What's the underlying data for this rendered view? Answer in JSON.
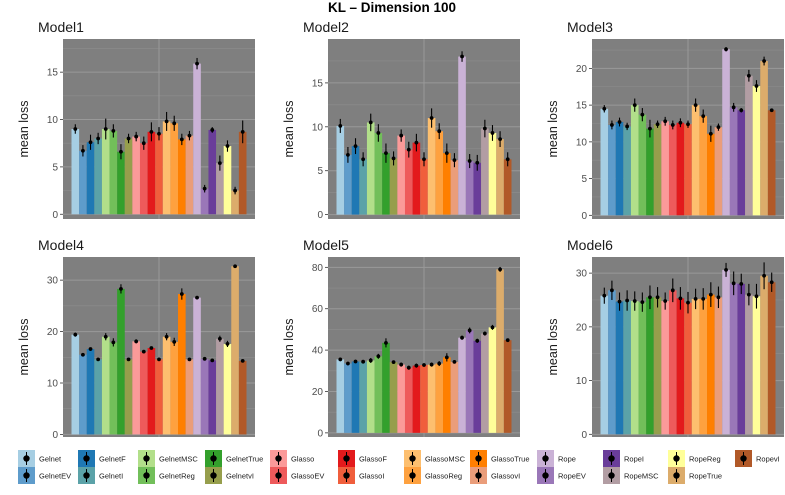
{
  "figure_title": "KL – Dimension 100",
  "methods": [
    "Gelnet",
    "GelnetEV",
    "GelnetF",
    "GelnetI",
    "GelnetMSC",
    "GelnetReg",
    "GelnetTrue",
    "GelnetvI",
    "Glasso",
    "GlassoEV",
    "GlassoF",
    "GlassoI",
    "GlassoMSC",
    "GlassoReg",
    "GlassoTrue",
    "GlassovI",
    "Rope",
    "RopeEV",
    "RopeI",
    "RopeMSC",
    "RopeReg",
    "RopeTrue",
    "RopevI"
  ],
  "colors": [
    "#a6cee3",
    "#5e9ccb",
    "#1f78b4",
    "#5ba2a8",
    "#b2df8a",
    "#72bf5a",
    "#33a02c",
    "#969e4c",
    "#fb9a99",
    "#ee5a5b",
    "#e31a1c",
    "#f05e3c",
    "#fdbf6f",
    "#fea13f",
    "#ff7f00",
    "#ea9d7a",
    "#cab2d6",
    "#9a77b8",
    "#6a3d9a",
    "#b29da3",
    "#ffff99",
    "#dcac6b",
    "#b15928"
  ],
  "chart_data": [
    {
      "type": "bar",
      "title": "Model1",
      "ylabel": "mean loss",
      "ylim": [
        -0.5,
        18.5
      ],
      "yticks": [
        0,
        5,
        10,
        15
      ],
      "categories": [
        "Gelnet",
        "GelnetEV",
        "GelnetF",
        "GelnetI",
        "GelnetMSC",
        "GelnetReg",
        "GelnetTrue",
        "GelnetvI",
        "Glasso",
        "GlassoEV",
        "GlassoF",
        "GlassoI",
        "GlassoMSC",
        "GlassoReg",
        "GlassoTrue",
        "GlassovI",
        "Rope",
        "RopeEV",
        "RopeI",
        "RopeMSC",
        "RopeReg",
        "RopeTrue",
        "RopevI"
      ],
      "values": [
        9.0,
        6.7,
        7.6,
        8.0,
        9.0,
        8.8,
        6.6,
        8.0,
        8.2,
        7.5,
        8.7,
        8.5,
        9.8,
        9.6,
        7.9,
        8.3,
        15.9,
        2.7,
        8.9,
        5.4,
        7.2,
        2.5,
        8.7
      ],
      "errors": [
        0.5,
        0.6,
        0.8,
        0.6,
        1.1,
        0.7,
        0.8,
        0.5,
        0.5,
        0.7,
        1.0,
        0.7,
        1.0,
        0.8,
        0.6,
        0.5,
        0.6,
        0.4,
        0.3,
        0.8,
        0.6,
        0.4,
        1.2
      ]
    },
    {
      "type": "bar",
      "title": "Model2",
      "ylabel": "mean loss",
      "ylim": [
        -0.5,
        20
      ],
      "yticks": [
        0,
        5,
        10,
        15
      ],
      "categories": [
        "Gelnet",
        "GelnetEV",
        "GelnetF",
        "GelnetI",
        "GelnetMSC",
        "GelnetReg",
        "GelnetTrue",
        "GelnetvI",
        "Glasso",
        "GlassoEV",
        "GlassoF",
        "GlassoI",
        "GlassoMSC",
        "GlassoReg",
        "GlassoTrue",
        "GlassovI",
        "Rope",
        "RopeEV",
        "RopeI",
        "RopeMSC",
        "RopeReg",
        "RopeTrue",
        "RopevI"
      ],
      "values": [
        10.1,
        6.8,
        7.8,
        6.3,
        10.5,
        9.3,
        7.0,
        6.4,
        9.0,
        7.4,
        8.2,
        6.3,
        11.0,
        9.5,
        7.0,
        6.2,
        18.0,
        6.1,
        5.9,
        9.8,
        9.3,
        8.6,
        6.3
      ],
      "errors": [
        0.8,
        0.9,
        0.9,
        0.8,
        1.0,
        1.0,
        1.1,
        0.8,
        0.7,
        0.9,
        1.0,
        0.8,
        1.1,
        0.9,
        1.1,
        0.8,
        0.6,
        0.8,
        0.9,
        1.0,
        0.9,
        0.9,
        0.8
      ]
    },
    {
      "type": "bar",
      "title": "Model3",
      "ylabel": "mean loss",
      "ylim": [
        -0.5,
        24
      ],
      "yticks": [
        0,
        5,
        10,
        15,
        20
      ],
      "categories": [
        "Gelnet",
        "GelnetEV",
        "GelnetF",
        "GelnetI",
        "GelnetMSC",
        "GelnetReg",
        "GelnetTrue",
        "GelnetvI",
        "Glasso",
        "GlassoEV",
        "GlassoF",
        "GlassoI",
        "GlassoMSC",
        "GlassoReg",
        "GlassoTrue",
        "GlassovI",
        "Rope",
        "RopeEV",
        "RopeI",
        "RopeMSC",
        "RopeReg",
        "RopeTrue",
        "RopevI"
      ],
      "values": [
        14.5,
        12.3,
        12.7,
        12.1,
        15.0,
        13.7,
        11.8,
        12.4,
        12.8,
        12.3,
        12.6,
        12.4,
        15.0,
        13.5,
        11.1,
        12.0,
        22.6,
        14.7,
        14.3,
        19.0,
        17.6,
        21.0,
        14.3
      ],
      "errors": [
        0.5,
        0.6,
        0.6,
        0.5,
        0.9,
        0.9,
        1.2,
        0.5,
        0.6,
        0.6,
        0.6,
        0.5,
        0.9,
        0.9,
        1.1,
        0.5,
        0.3,
        0.6,
        0.3,
        0.8,
        0.8,
        0.6,
        0.2
      ]
    },
    {
      "type": "bar",
      "title": "Model4",
      "ylabel": "mean loss",
      "ylim": [
        -0.5,
        34.5
      ],
      "yticks": [
        0,
        10,
        20,
        30
      ],
      "categories": [
        "Gelnet",
        "GelnetEV",
        "GelnetF",
        "GelnetI",
        "GelnetMSC",
        "GelnetReg",
        "GelnetTrue",
        "GelnetvI",
        "Glasso",
        "GlassoEV",
        "GlassoF",
        "GlassoI",
        "GlassoMSC",
        "GlassoReg",
        "GlassoTrue",
        "GlassovI",
        "Rope",
        "RopeEV",
        "RopeI",
        "RopeMSC",
        "RopeReg",
        "RopeTrue",
        "RopevI"
      ],
      "values": [
        19.4,
        15.5,
        16.6,
        14.6,
        19.0,
        17.9,
        28.3,
        14.6,
        18.1,
        16.1,
        16.8,
        14.6,
        19.0,
        18.0,
        27.3,
        14.6,
        26.6,
        14.7,
        14.4,
        18.6,
        17.6,
        32.7,
        14.3
      ],
      "errors": [
        0.4,
        0.3,
        0.3,
        0.2,
        0.7,
        0.8,
        0.9,
        0.2,
        0.4,
        0.3,
        0.3,
        0.2,
        0.7,
        0.8,
        1.1,
        0.2,
        0.3,
        0.2,
        0.2,
        0.6,
        0.6,
        0.3,
        0.2
      ]
    },
    {
      "type": "bar",
      "title": "Model5",
      "ylabel": "mean loss",
      "ylim": [
        -2,
        85
      ],
      "yticks": [
        0,
        20,
        40,
        60,
        80
      ],
      "categories": [
        "Gelnet",
        "GelnetEV",
        "GelnetF",
        "GelnetI",
        "GelnetMSC",
        "GelnetReg",
        "GelnetTrue",
        "GelnetvI",
        "Glasso",
        "GlassoEV",
        "GlassoF",
        "GlassoI",
        "GlassoMSC",
        "GlassoReg",
        "GlassoTrue",
        "GlassovI",
        "Rope",
        "RopeEV",
        "RopeI",
        "RopeMSC",
        "RopeReg",
        "RopeTrue",
        "RopevI"
      ],
      "values": [
        35.5,
        33.5,
        34.5,
        34.4,
        35.0,
        37.0,
        43.5,
        34.2,
        33.0,
        31.5,
        32.5,
        32.8,
        33.0,
        33.5,
        36.5,
        34.3,
        46.0,
        49.5,
        44.5,
        48.0,
        51.0,
        79.0,
        44.8
      ],
      "errors": [
        0.8,
        0.8,
        0.8,
        0.6,
        1.2,
        1.2,
        2.2,
        0.8,
        1.0,
        1.0,
        1.0,
        0.8,
        1.0,
        1.2,
        2.0,
        0.8,
        1.0,
        1.4,
        1.0,
        1.0,
        1.2,
        1.2,
        0.6
      ]
    },
    {
      "type": "bar",
      "title": "Model6",
      "ylabel": "mean loss",
      "ylim": [
        -0.5,
        33
      ],
      "yticks": [
        0,
        10,
        20,
        30
      ],
      "categories": [
        "Gelnet",
        "GelnetEV",
        "GelnetF",
        "GelnetI",
        "GelnetMSC",
        "GelnetReg",
        "GelnetTrue",
        "GelnetvI",
        "Glasso",
        "GlassoEV",
        "GlassoF",
        "GlassoI",
        "GlassoMSC",
        "GlassoReg",
        "GlassoTrue",
        "GlassovI",
        "Rope",
        "RopeEV",
        "RopeI",
        "RopeMSC",
        "RopeReg",
        "RopeTrue",
        "RopevI"
      ],
      "values": [
        25.8,
        26.8,
        24.7,
        24.9,
        24.8,
        24.6,
        25.5,
        25.5,
        24.8,
        26.8,
        25.3,
        24.5,
        25.2,
        25.2,
        26.0,
        25.5,
        30.6,
        28.1,
        28.0,
        26.0,
        25.7,
        29.5,
        28.3
      ],
      "errors": [
        1.5,
        1.8,
        1.7,
        1.9,
        1.8,
        1.8,
        2.2,
        1.9,
        1.6,
        2.2,
        2.1,
        2.0,
        1.9,
        2.0,
        2.3,
        2.0,
        1.3,
        2.2,
        1.9,
        2.0,
        2.3,
        2.5,
        1.8
      ]
    }
  ]
}
